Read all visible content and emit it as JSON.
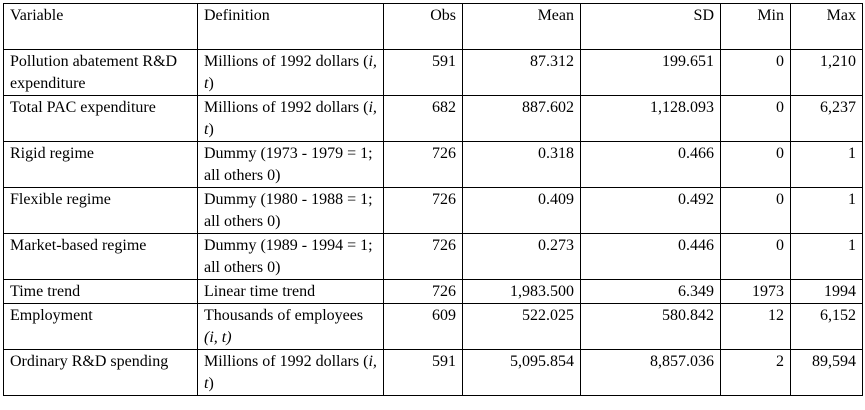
{
  "table": {
    "header": [
      "Variable",
      "Definition",
      "Obs",
      "Mean",
      "SD",
      "Min",
      "Max"
    ],
    "rows": [
      {
        "variable": "Pollution abatement R&D expenditure",
        "definition": [
          "Millions of 1992 dollars (",
          "i, t",
          ")"
        ],
        "values": [
          "591",
          "87.312",
          "199.651",
          "0",
          "1,210"
        ]
      },
      {
        "variable": "Total PAC expenditure",
        "definition": [
          "Millions of 1992 dollars (",
          "i, t",
          ")"
        ],
        "values": [
          "682",
          "887.602",
          "1,128.093",
          "0",
          "6,237"
        ]
      },
      {
        "variable": "Rigid regime",
        "definition": [
          "Dummy (1973 - 1979 = 1; all others 0)"
        ],
        "values": [
          "726",
          "0.318",
          "0.466",
          "0",
          "1"
        ]
      },
      {
        "variable": "Flexible regime",
        "definition": [
          "Dummy (1980 - 1988 = 1; all others 0)"
        ],
        "values": [
          "726",
          "0.409",
          "0.492",
          "0",
          "1"
        ]
      },
      {
        "variable": "Market-based regime",
        "definition": [
          "Dummy (1989 - 1994 = 1; all others 0)"
        ],
        "values": [
          "726",
          "0.273",
          "0.446",
          "0",
          "1"
        ]
      },
      {
        "variable": "Time trend",
        "definition": [
          "Linear time trend"
        ],
        "values": [
          "726",
          "1,983.500",
          "6.349",
          "1973",
          "1994"
        ]
      },
      {
        "variable": "Employment",
        "definition": [
          "Thousands of employees ",
          "(i, t)"
        ],
        "values": [
          "609",
          "522.025",
          "580.842",
          "12",
          "6,152"
        ]
      },
      {
        "variable": "Ordinary R&D spending",
        "definition": [
          "Millions of 1992 dollars (",
          "i, t",
          ")"
        ],
        "values": [
          "591",
          "5,095.854",
          "8,857.036",
          "2",
          "89,594"
        ]
      }
    ]
  }
}
